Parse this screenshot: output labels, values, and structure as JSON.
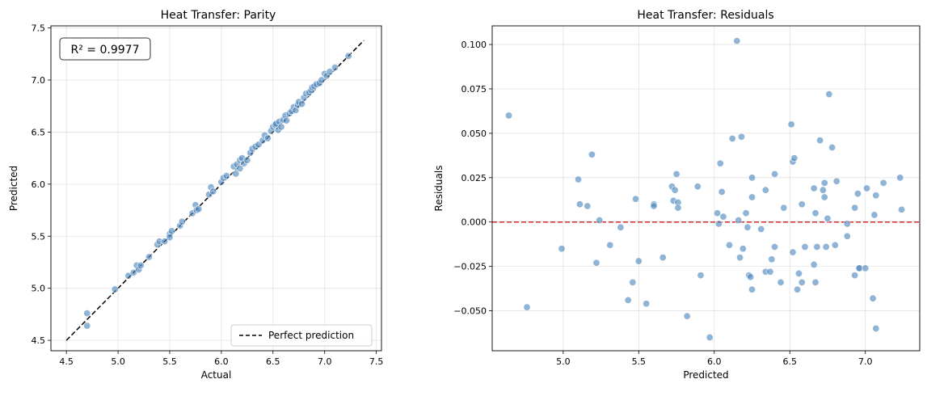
{
  "chart_data": [
    {
      "type": "scatter",
      "title": "Heat Transfer: Parity",
      "xlabel": "Actual",
      "ylabel": "Predicted",
      "xlim": [
        4.35,
        7.55
      ],
      "ylim": [
        4.4,
        7.52
      ],
      "xticks": [
        "4.5",
        "5.0",
        "5.5",
        "6.0",
        "6.5",
        "7.0",
        "7.5"
      ],
      "yticks": [
        "4.5",
        "5.0",
        "5.5",
        "6.0",
        "6.5",
        "7.0",
        "7.5"
      ],
      "grid": true,
      "annotation": "R² = 0.9977",
      "legend": {
        "placement": "lower-right",
        "entries": [
          "Perfect prediction"
        ]
      },
      "reference_line": {
        "label": "Perfect prediction",
        "x": [
          4.5,
          7.38
        ],
        "y": [
          4.5,
          7.38
        ],
        "style": "dashed",
        "color": "#000000"
      },
      "point_color": "#4c86bb",
      "points": [
        [
          4.7,
          4.76
        ],
        [
          4.7,
          4.64
        ],
        [
          4.97,
          4.99
        ],
        [
          5.1,
          5.12
        ],
        [
          5.15,
          5.15
        ],
        [
          5.18,
          5.22
        ],
        [
          5.2,
          5.18
        ],
        [
          5.22,
          5.22
        ],
        [
          5.3,
          5.3
        ],
        [
          5.38,
          5.42
        ],
        [
          5.4,
          5.45
        ],
        [
          5.45,
          5.45
        ],
        [
          5.5,
          5.52
        ],
        [
          5.5,
          5.49
        ],
        [
          5.52,
          5.55
        ],
        [
          5.6,
          5.6
        ],
        [
          5.62,
          5.64
        ],
        [
          5.72,
          5.72
        ],
        [
          5.75,
          5.8
        ],
        [
          5.76,
          5.75
        ],
        [
          5.78,
          5.76
        ],
        [
          5.88,
          5.9
        ],
        [
          5.9,
          5.97
        ],
        [
          5.92,
          5.93
        ],
        [
          6.0,
          6.02
        ],
        [
          6.02,
          6.06
        ],
        [
          6.05,
          6.08
        ],
        [
          6.12,
          6.17
        ],
        [
          6.14,
          6.1
        ],
        [
          6.15,
          6.19
        ],
        [
          6.18,
          6.15
        ],
        [
          6.18,
          6.23
        ],
        [
          6.2,
          6.25
        ],
        [
          6.22,
          6.2
        ],
        [
          6.25,
          6.23
        ],
        [
          6.28,
          6.3
        ],
        [
          6.3,
          6.34
        ],
        [
          6.33,
          6.36
        ],
        [
          6.36,
          6.38
        ],
        [
          6.4,
          6.42
        ],
        [
          6.42,
          6.47
        ],
        [
          6.45,
          6.44
        ],
        [
          6.48,
          6.51
        ],
        [
          6.5,
          6.55
        ],
        [
          6.52,
          6.57
        ],
        [
          6.53,
          6.58
        ],
        [
          6.55,
          6.52
        ],
        [
          6.56,
          6.6
        ],
        [
          6.58,
          6.55
        ],
        [
          6.6,
          6.62
        ],
        [
          6.62,
          6.66
        ],
        [
          6.63,
          6.61
        ],
        [
          6.66,
          6.68
        ],
        [
          6.68,
          6.7
        ],
        [
          6.7,
          6.74
        ],
        [
          6.72,
          6.71
        ],
        [
          6.74,
          6.76
        ],
        [
          6.75,
          6.79
        ],
        [
          6.78,
          6.77
        ],
        [
          6.8,
          6.83
        ],
        [
          6.82,
          6.87
        ],
        [
          6.85,
          6.88
        ],
        [
          6.87,
          6.9
        ],
        [
          6.88,
          6.93
        ],
        [
          6.9,
          6.94
        ],
        [
          6.92,
          6.96
        ],
        [
          6.95,
          6.97
        ],
        [
          6.97,
          7.0
        ],
        [
          7.0,
          7.06
        ],
        [
          7.02,
          7.04
        ],
        [
          7.05,
          7.08
        ],
        [
          7.1,
          7.12
        ],
        [
          7.23,
          7.23
        ]
      ]
    },
    {
      "type": "scatter",
      "title": "Heat Transfer: Residuals",
      "xlabel": "Predicted",
      "ylabel": "Residuals",
      "xlim": [
        4.53,
        7.36
      ],
      "ylim": [
        -0.0725,
        0.1105
      ],
      "xticks": [
        "5.0",
        "5.5",
        "6.0",
        "6.5",
        "7.0"
      ],
      "yticks": [
        "−0.050",
        "−0.025",
        "0.000",
        "0.025",
        "0.050",
        "0.075",
        "0.100"
      ],
      "grid": true,
      "reference_line": {
        "y": 0.0,
        "style": "dashed",
        "color": "#d62728"
      },
      "point_color": "#4c86bb",
      "points": [
        [
          4.64,
          0.06
        ],
        [
          4.76,
          -0.048
        ],
        [
          4.99,
          -0.015
        ],
        [
          5.1,
          0.024
        ],
        [
          5.11,
          0.01
        ],
        [
          5.16,
          0.009
        ],
        [
          5.19,
          0.038
        ],
        [
          5.22,
          -0.023
        ],
        [
          5.24,
          0.001
        ],
        [
          5.31,
          -0.013
        ],
        [
          5.38,
          -0.003
        ],
        [
          5.43,
          -0.044
        ],
        [
          5.46,
          -0.034
        ],
        [
          5.48,
          0.013
        ],
        [
          5.5,
          -0.022
        ],
        [
          5.55,
          -0.046
        ],
        [
          5.6,
          0.01
        ],
        [
          5.6,
          0.009
        ],
        [
          5.66,
          -0.02
        ],
        [
          5.72,
          0.02
        ],
        [
          5.73,
          0.012
        ],
        [
          5.74,
          0.018
        ],
        [
          5.75,
          0.027
        ],
        [
          5.76,
          0.011
        ],
        [
          5.76,
          0.008
        ],
        [
          5.82,
          -0.053
        ],
        [
          5.89,
          0.02
        ],
        [
          5.91,
          -0.03
        ],
        [
          5.97,
          -0.065
        ],
        [
          6.02,
          0.005
        ],
        [
          6.03,
          -0.001
        ],
        [
          6.04,
          0.033
        ],
        [
          6.05,
          0.017
        ],
        [
          6.06,
          0.003
        ],
        [
          6.1,
          -0.013
        ],
        [
          6.12,
          0.047
        ],
        [
          6.15,
          0.102
        ],
        [
          6.16,
          0.001
        ],
        [
          6.17,
          -0.02
        ],
        [
          6.18,
          0.048
        ],
        [
          6.19,
          -0.015
        ],
        [
          6.21,
          0.005
        ],
        [
          6.22,
          -0.003
        ],
        [
          6.23,
          -0.03
        ],
        [
          6.24,
          -0.031
        ],
        [
          6.25,
          0.025
        ],
        [
          6.25,
          0.014
        ],
        [
          6.25,
          -0.038
        ],
        [
          6.31,
          -0.004
        ],
        [
          6.34,
          -0.028
        ],
        [
          6.34,
          0.018
        ],
        [
          6.37,
          -0.028
        ],
        [
          6.38,
          -0.021
        ],
        [
          6.4,
          0.027
        ],
        [
          6.4,
          -0.014
        ],
        [
          6.44,
          -0.034
        ],
        [
          6.46,
          0.008
        ],
        [
          6.51,
          0.055
        ],
        [
          6.52,
          -0.017
        ],
        [
          6.52,
          0.034
        ],
        [
          6.53,
          0.036
        ],
        [
          6.55,
          -0.038
        ],
        [
          6.56,
          -0.029
        ],
        [
          6.58,
          0.01
        ],
        [
          6.58,
          -0.034
        ],
        [
          6.6,
          -0.014
        ],
        [
          6.66,
          0.019
        ],
        [
          6.66,
          -0.024
        ],
        [
          6.67,
          -0.034
        ],
        [
          6.67,
          0.005
        ],
        [
          6.68,
          -0.014
        ],
        [
          6.7,
          0.046
        ],
        [
          6.72,
          0.018
        ],
        [
          6.73,
          0.014
        ],
        [
          6.73,
          0.022
        ],
        [
          6.74,
          -0.014
        ],
        [
          6.75,
          0.002
        ],
        [
          6.76,
          0.072
        ],
        [
          6.78,
          0.042
        ],
        [
          6.8,
          -0.013
        ],
        [
          6.81,
          0.023
        ],
        [
          6.88,
          -0.001
        ],
        [
          6.88,
          -0.008
        ],
        [
          6.93,
          0.008
        ],
        [
          6.93,
          -0.03
        ],
        [
          6.95,
          0.016
        ],
        [
          6.96,
          -0.026
        ],
        [
          6.96,
          -0.026
        ],
        [
          7.0,
          -0.026
        ],
        [
          7.01,
          0.019
        ],
        [
          7.05,
          -0.043
        ],
        [
          7.06,
          0.004
        ],
        [
          7.07,
          0.015
        ],
        [
          7.07,
          -0.06
        ],
        [
          7.12,
          0.022
        ],
        [
          7.23,
          0.025
        ],
        [
          7.24,
          0.007
        ]
      ]
    }
  ]
}
